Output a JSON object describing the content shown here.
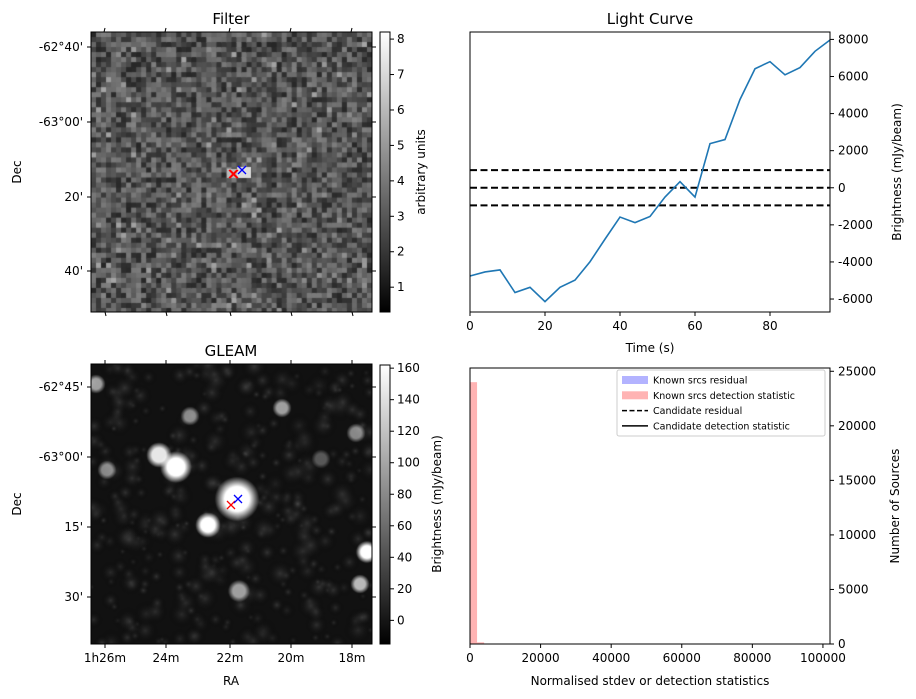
{
  "chart_data": [
    {
      "type": "heatmap",
      "title": "Filter",
      "ylabel": "Dec",
      "yticks": [
        "-62°40'",
        "-63°00'",
        "20'",
        "40'"
      ],
      "colorbar": {
        "label": "arbitrary units",
        "range": [
          0.3,
          8.2
        ],
        "ticks": [
          "1",
          "2",
          "3",
          "4",
          "5",
          "6",
          "7",
          "8"
        ]
      },
      "markers": [
        {
          "color": "#ff0000",
          "symbol": "x"
        },
        {
          "color": "#0000ff",
          "symbol": "x"
        }
      ]
    },
    {
      "type": "line",
      "title": "Light Curve",
      "xlabel": "Time (s)",
      "ylabel": "Brightness (mJy/beam)",
      "xlim": [
        0,
        96
      ],
      "ylim": [
        -6700,
        8400
      ],
      "xticks": [
        "0",
        "20",
        "40",
        "60",
        "80"
      ],
      "yticks": [
        "-6000",
        "-4000",
        "-2000",
        "0",
        "2000",
        "4000",
        "6000",
        "8000"
      ],
      "x": [
        0,
        4,
        8,
        12,
        16,
        20,
        24,
        28,
        32,
        36,
        40,
        44,
        48,
        52,
        56,
        60,
        64,
        68,
        72,
        76,
        80,
        84,
        88,
        92,
        96
      ],
      "y": [
        -4760,
        -4540,
        -4430,
        -5650,
        -5370,
        -6140,
        -5370,
        -4980,
        -3990,
        -2770,
        -1580,
        -1880,
        -1550,
        -500,
        330,
        -500,
        2380,
        2600,
        4760,
        6420,
        6800,
        6090,
        6480,
        7360,
        7970
      ],
      "line_color": "#1f77b4",
      "hlines": [
        950,
        0,
        -950
      ]
    },
    {
      "type": "heatmap",
      "title": "GLEAM",
      "xlabel": "RA",
      "ylabel": "Dec",
      "xticks": [
        "1h26m",
        "24m",
        "22m",
        "20m",
        "18m"
      ],
      "yticks": [
        "-62°45'",
        "-63°00'",
        "15'",
        "30'"
      ],
      "colorbar": {
        "label": "Brightness (mJy/beam)",
        "range": [
          -15,
          162
        ],
        "ticks": [
          "0",
          "20",
          "40",
          "60",
          "80",
          "100",
          "120",
          "140",
          "160"
        ]
      },
      "markers": [
        {
          "color": "#ff0000",
          "symbol": "x"
        },
        {
          "color": "#0000ff",
          "symbol": "x"
        }
      ]
    },
    {
      "type": "bar",
      "xlabel": "Normalised stdev or detection statistics",
      "ylabel": "Number of Sources",
      "xlim": [
        0,
        102000
      ],
      "ylim": [
        0,
        25300
      ],
      "xticks": [
        "0",
        "20000",
        "40000",
        "60000",
        "80000",
        "100000"
      ],
      "yticks": [
        "0",
        "5000",
        "10000",
        "15000",
        "20000",
        "25000"
      ],
      "bins": [
        {
          "x0": 0,
          "x1": 2000,
          "count": 24000
        },
        {
          "x0": 2000,
          "x1": 4000,
          "count": 150
        }
      ],
      "legend": {
        "placement": "top-right",
        "entries": [
          "Known srcs residual",
          "Known srcs detection statistic",
          "Candidate residual",
          "Candidate detection statistic"
        ],
        "colors": [
          "#b3b3ff",
          "#ffb3b3",
          "#000000",
          "#000000"
        ]
      }
    }
  ]
}
